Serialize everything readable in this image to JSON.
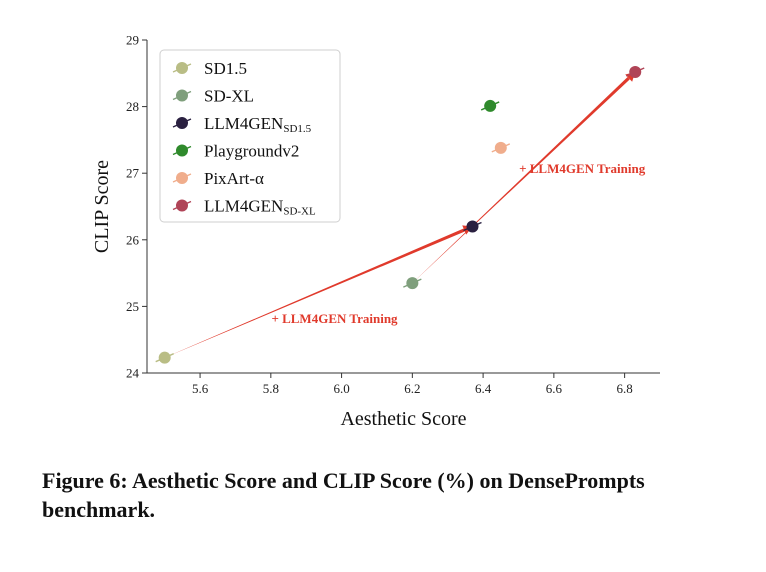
{
  "chart_data": {
    "type": "scatter",
    "xlabel": "Aesthetic Score",
    "ylabel": "CLIP Score",
    "xlim": [
      5.45,
      6.9
    ],
    "ylim": [
      24,
      29
    ],
    "xticks": [
      "5.6",
      "5.8",
      "6.0",
      "6.2",
      "6.4",
      "6.6",
      "6.8"
    ],
    "yticks": [
      "24",
      "25",
      "26",
      "27",
      "28",
      "29"
    ],
    "grid": false,
    "legend_position": "top-left",
    "series": [
      {
        "name": "SD1.5",
        "sub": "",
        "color": "#b9bd85",
        "x": 5.5,
        "y": 24.23
      },
      {
        "name": "SD-XL",
        "sub": "",
        "color": "#7f9f7c",
        "x": 6.2,
        "y": 25.35
      },
      {
        "name": "LLM4GEN",
        "sub": "SD1.5",
        "color": "#2a2040",
        "x": 6.37,
        "y": 26.2
      },
      {
        "name": "Playgroundv2",
        "sub": "",
        "color": "#2f8a2c",
        "x": 6.42,
        "y": 28.01
      },
      {
        "name": "PixArt-α",
        "sub": "",
        "color": "#f0ad8c",
        "x": 6.45,
        "y": 27.38
      },
      {
        "name": "LLM4GEN",
        "sub": "SD-XL",
        "color": "#b04457",
        "x": 6.83,
        "y": 28.52
      }
    ],
    "arrows": [
      {
        "from": [
          5.5,
          24.23
        ],
        "to": [
          6.37,
          26.2
        ]
      },
      {
        "from": [
          6.2,
          25.35
        ],
        "to": [
          6.83,
          28.52
        ]
      }
    ],
    "annotations": [
      {
        "text": "+ LLM4GEN Training",
        "x": 5.98,
        "y": 24.75
      },
      {
        "text": "+ LLM4GEN Training",
        "x": 6.68,
        "y": 27.0
      }
    ]
  },
  "caption": "Figure 6: Aesthetic Score and CLIP Score (%) on DensePrompts benchmark."
}
